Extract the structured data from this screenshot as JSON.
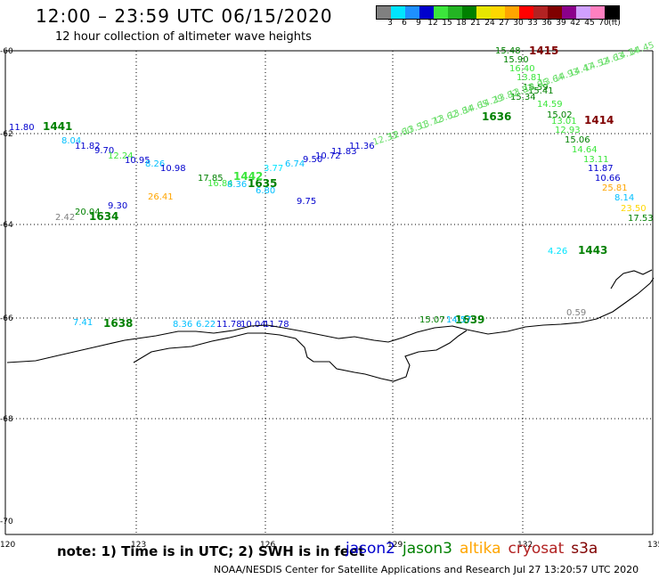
{
  "title": "12:00 – 23:59 UTC 06/15/2020",
  "subtitle": "12 hour collection of altimeter wave heights",
  "colorbar": {
    "colors": [
      "#808080",
      "#00e5ff",
      "#1e90ff",
      "#0000cd",
      "#3ce63c",
      "#23b423",
      "#008000",
      "#e6e600",
      "#ffd700",
      "#ffa500",
      "#ff0000",
      "#b22222",
      "#800000",
      "#8b008b",
      "#d0a0ff",
      "#ff80c0",
      "#000000"
    ],
    "ticks": [
      "3",
      "6",
      "9",
      "12",
      "15",
      "18",
      "21",
      "24",
      "27",
      "30",
      "33",
      "36",
      "39",
      "42",
      "45",
      "70",
      "(ft)"
    ]
  },
  "axes": {
    "lat_labels": [
      "-60",
      "-62",
      "-64",
      "-66",
      "-68",
      "-70"
    ],
    "lon_labels": [
      "120",
      "123",
      "126",
      "129",
      "132",
      "135"
    ]
  },
  "note": "note: 1) Time is in UTC; 2) SWH is in feet",
  "satellites": [
    {
      "name": "jason2",
      "color": "#0000cd"
    },
    {
      "name": "jason3",
      "color": "#008000"
    },
    {
      "name": "altika",
      "color": "#ffa500"
    },
    {
      "name": "cryosat",
      "color": "#b22222"
    },
    {
      "name": "s3a",
      "color": "#800000"
    }
  ],
  "credit": "NOAA/NESDIS Center for Satellite Applications and Research    Jul 27 13:20:57 UTC 2020",
  "pass_times": [
    {
      "text": "1441",
      "color": "#008000"
    },
    {
      "text": "1634",
      "color": "#008000"
    },
    {
      "text": "1635",
      "color": "#008000"
    },
    {
      "text": "1442",
      "color": "#3ce63c"
    },
    {
      "text": "1636",
      "color": "#008000"
    },
    {
      "text": "1415",
      "color": "#800000"
    },
    {
      "text": "1414",
      "color": "#800000"
    },
    {
      "text": "1443",
      "color": "#008000"
    },
    {
      "text": "1638",
      "color": "#008000"
    },
    {
      "text": "1639",
      "color": "#008000"
    }
  ],
  "wave_heights": [
    {
      "text": "11.80",
      "color": "#0000cd"
    },
    {
      "text": "8.04",
      "color": "#00bfff"
    },
    {
      "text": "11.82",
      "color": "#0000cd"
    },
    {
      "text": "9.70",
      "color": "#0000cd"
    },
    {
      "text": "12.24",
      "color": "#3ce63c"
    },
    {
      "text": "10.95",
      "color": "#0000cd"
    },
    {
      "text": "8.26",
      "color": "#00bfff"
    },
    {
      "text": "10.98",
      "color": "#0000cd"
    },
    {
      "text": "17.85",
      "color": "#008000"
    },
    {
      "text": "16.84",
      "color": "#3ce63c"
    },
    {
      "text": "8.36",
      "color": "#00bfff"
    },
    {
      "text": "3.77",
      "color": "#00e5ff"
    },
    {
      "text": "6.74",
      "color": "#00bfff"
    },
    {
      "text": "6.80",
      "color": "#00bfff"
    },
    {
      "text": "9.50",
      "color": "#0000cd"
    },
    {
      "text": "10.72",
      "color": "#0000cd"
    },
    {
      "text": "11.83",
      "color": "#0000cd"
    },
    {
      "text": "11.36",
      "color": "#0000cd"
    },
    {
      "text": "9.75",
      "color": "#0000cd"
    },
    {
      "text": "26.41",
      "color": "#ffa500"
    },
    {
      "text": "9.30",
      "color": "#0000cd"
    },
    {
      "text": "20.04",
      "color": "#008000"
    },
    {
      "text": "2.42",
      "color": "#808080"
    },
    {
      "text": "15.48",
      "color": "#008000"
    },
    {
      "text": "15.90",
      "color": "#008000"
    },
    {
      "text": "16.40",
      "color": "#3ce63c"
    },
    {
      "text": "13.81",
      "color": "#3ce63c"
    },
    {
      "text": "15.59",
      "color": "#008000"
    },
    {
      "text": "15.34",
      "color": "#008000"
    },
    {
      "text": "15.41",
      "color": "#008000"
    },
    {
      "text": "14.59",
      "color": "#3ce63c"
    },
    {
      "text": "15.02",
      "color": "#008000"
    },
    {
      "text": "13.01",
      "color": "#3ce63c"
    },
    {
      "text": "12.93",
      "color": "#3ce63c"
    },
    {
      "text": "15.06",
      "color": "#008000"
    },
    {
      "text": "14.64",
      "color": "#3ce63c"
    },
    {
      "text": "13.11",
      "color": "#3ce63c"
    },
    {
      "text": "11.87",
      "color": "#0000cd"
    },
    {
      "text": "10.66",
      "color": "#0000cd"
    },
    {
      "text": "25.81",
      "color": "#ffa500"
    },
    {
      "text": "8.14",
      "color": "#00bfff"
    },
    {
      "text": "23.50",
      "color": "#ffd700"
    },
    {
      "text": "17.53",
      "color": "#008000"
    },
    {
      "text": "4.26",
      "color": "#00e5ff"
    },
    {
      "text": "7.41",
      "color": "#00bfff"
    },
    {
      "text": "8.36",
      "color": "#00bfff"
    },
    {
      "text": "6.22",
      "color": "#00bfff"
    },
    {
      "text": "11.78",
      "color": "#0000cd"
    },
    {
      "text": "10.04",
      "color": "#0000cd"
    },
    {
      "text": "11.78",
      "color": "#0000cd"
    },
    {
      "text": "15.07",
      "color": "#008000"
    },
    {
      "text": "14.57",
      "color": "#00bfff"
    },
    {
      "text": "0.59",
      "color": "#808080"
    }
  ],
  "track_labels": [
    "12.33",
    "12.60",
    "13.51",
    "13.72",
    "13.62",
    "13.84",
    "14.65",
    "14.29",
    "13.82",
    "13.87",
    "13.95",
    "13.64",
    "14.93",
    "14.47",
    "14.52",
    "14.63",
    "14.14",
    "14.45"
  ]
}
